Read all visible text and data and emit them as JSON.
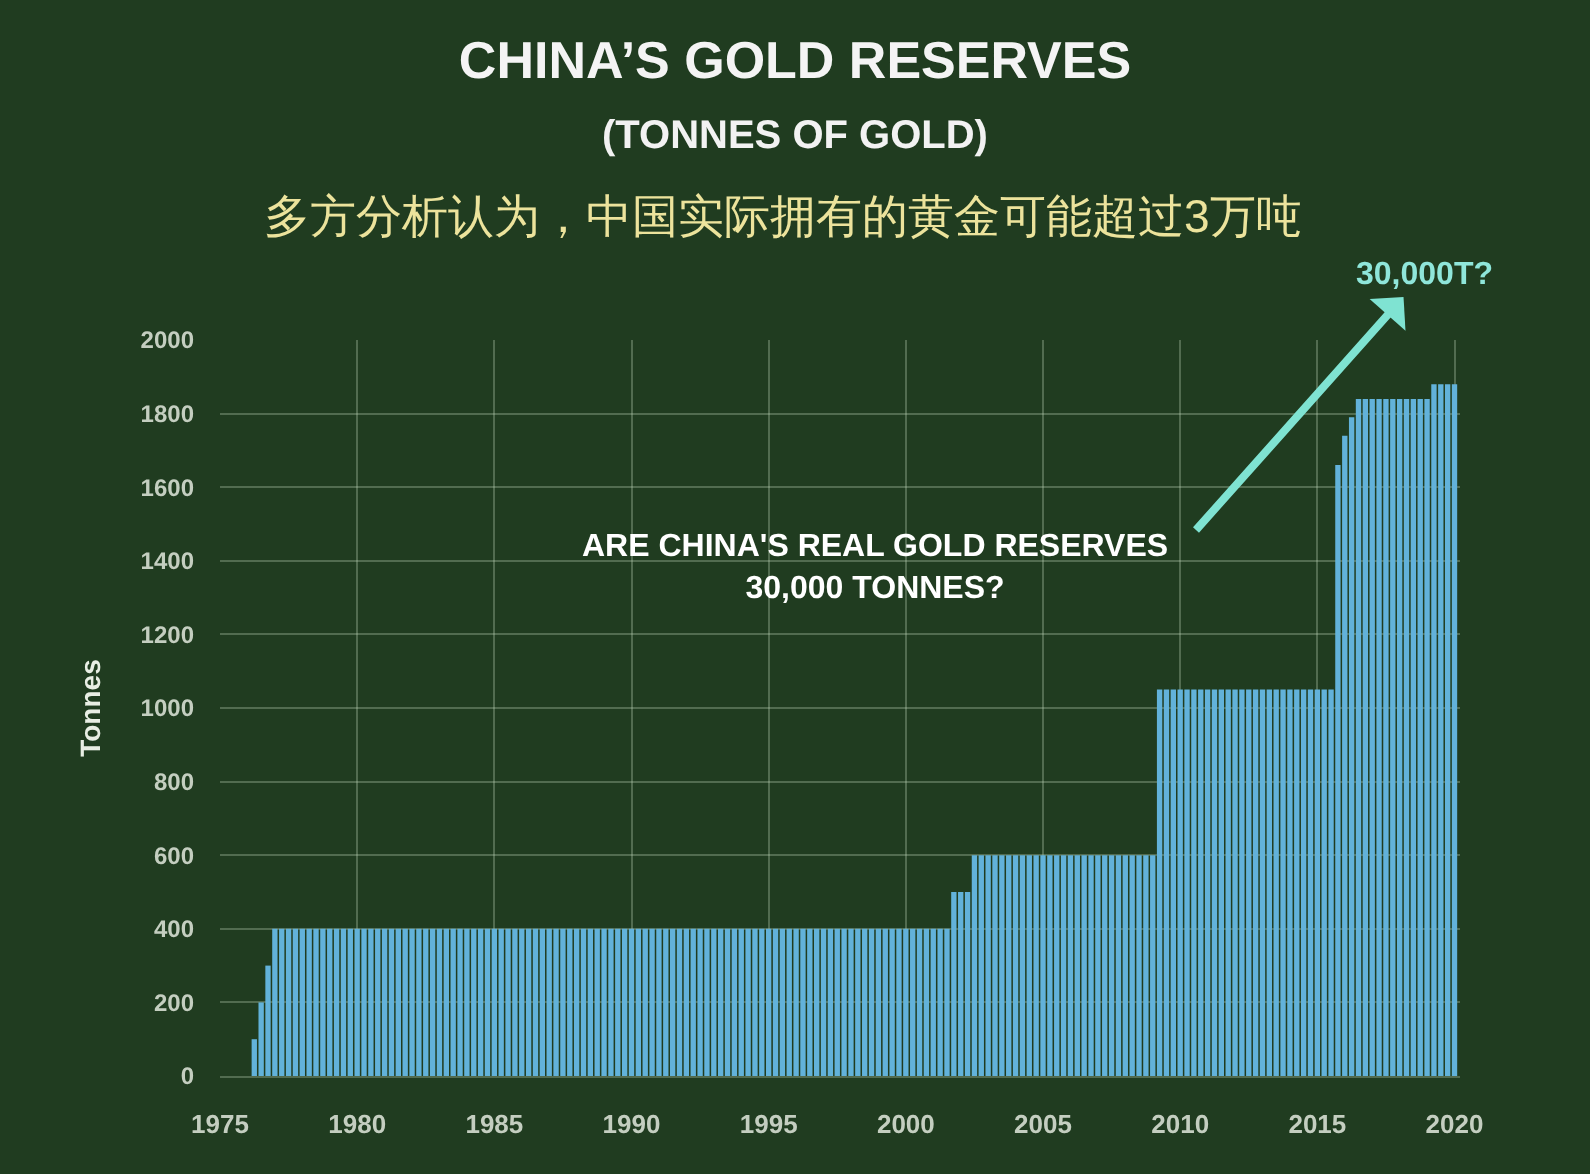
{
  "chart_data": {
    "type": "bar",
    "title": "CHINA’S GOLD RESERVES",
    "subtitle": "(TONNES OF GOLD)",
    "ylabel": "Tonnes",
    "annotations": [
      "多方分析认为，中国实际拥有的黄金可能超过3万吨",
      "ARE CHINA'S REAL GOLD RESERVES\n30,000 TONNES?",
      "30,000T?"
    ],
    "x": [
      1976.25,
      1976.5,
      1976.75,
      1977,
      1977.25,
      1977.5,
      1977.75,
      1978,
      1978.25,
      1978.5,
      1978.75,
      1979,
      1979.25,
      1979.5,
      1979.75,
      1980,
      1980.25,
      1980.5,
      1980.75,
      1981,
      1981.25,
      1981.5,
      1981.75,
      1982,
      1982.25,
      1982.5,
      1982.75,
      1983,
      1983.25,
      1983.5,
      1983.75,
      1984,
      1984.25,
      1984.5,
      1984.75,
      1985,
      1985.25,
      1985.5,
      1985.75,
      1986,
      1986.25,
      1986.5,
      1986.75,
      1987,
      1987.25,
      1987.5,
      1987.75,
      1988,
      1988.25,
      1988.5,
      1988.75,
      1989,
      1989.25,
      1989.5,
      1989.75,
      1990,
      1990.25,
      1990.5,
      1990.75,
      1991,
      1991.25,
      1991.5,
      1991.75,
      1992,
      1992.25,
      1992.5,
      1992.75,
      1993,
      1993.25,
      1993.5,
      1993.75,
      1994,
      1994.25,
      1994.5,
      1994.75,
      1995,
      1995.25,
      1995.5,
      1995.75,
      1996,
      1996.25,
      1996.5,
      1996.75,
      1997,
      1997.25,
      1997.5,
      1997.75,
      1998,
      1998.25,
      1998.5,
      1998.75,
      1999,
      1999.25,
      1999.5,
      1999.75,
      2000,
      2000.25,
      2000.5,
      2000.75,
      2001,
      2001.25,
      2001.5,
      2001.75,
      2002,
      2002.25,
      2002.5,
      2002.75,
      2003,
      2003.25,
      2003.5,
      2003.75,
      2004,
      2004.25,
      2004.5,
      2004.75,
      2005,
      2005.25,
      2005.5,
      2005.75,
      2006,
      2006.25,
      2006.5,
      2006.75,
      2007,
      2007.25,
      2007.5,
      2007.75,
      2008,
      2008.25,
      2008.5,
      2008.75,
      2009,
      2009.25,
      2009.5,
      2009.75,
      2010,
      2010.25,
      2010.5,
      2010.75,
      2011,
      2011.25,
      2011.5,
      2011.75,
      2012,
      2012.25,
      2012.5,
      2012.75,
      2013,
      2013.25,
      2013.5,
      2013.75,
      2014,
      2014.25,
      2014.5,
      2014.75,
      2015,
      2015.25,
      2015.5,
      2015.75,
      2016,
      2016.25,
      2016.5,
      2016.75,
      2017,
      2017.25,
      2017.5,
      2017.75,
      2018,
      2018.25,
      2018.5,
      2018.75,
      2019,
      2019.25,
      2019.5,
      2019.75,
      2020
    ],
    "values": [
      100,
      200,
      300,
      400,
      400,
      400,
      400,
      400,
      400,
      400,
      400,
      400,
      400,
      400,
      400,
      400,
      400,
      400,
      400,
      400,
      400,
      400,
      400,
      400,
      400,
      400,
      400,
      400,
      400,
      400,
      400,
      400,
      400,
      400,
      400,
      400,
      400,
      400,
      400,
      400,
      400,
      400,
      400,
      400,
      400,
      400,
      400,
      400,
      400,
      400,
      400,
      400,
      400,
      400,
      400,
      400,
      400,
      400,
      400,
      400,
      400,
      400,
      400,
      400,
      400,
      400,
      400,
      400,
      400,
      400,
      400,
      400,
      400,
      400,
      400,
      400,
      400,
      400,
      400,
      400,
      400,
      400,
      400,
      400,
      400,
      400,
      400,
      400,
      400,
      400,
      400,
      400,
      400,
      400,
      400,
      400,
      400,
      400,
      400,
      400,
      400,
      400,
      500,
      500,
      500,
      600,
      600,
      600,
      600,
      600,
      600,
      600,
      600,
      600,
      600,
      600,
      600,
      600,
      600,
      600,
      600,
      600,
      600,
      600,
      600,
      600,
      600,
      600,
      600,
      600,
      600,
      600,
      1050,
      1050,
      1050,
      1050,
      1050,
      1050,
      1050,
      1050,
      1050,
      1050,
      1050,
      1050,
      1050,
      1050,
      1050,
      1050,
      1050,
      1050,
      1050,
      1050,
      1050,
      1050,
      1050,
      1050,
      1050,
      1050,
      1660,
      1740,
      1790,
      1840,
      1840,
      1840,
      1840,
      1840,
      1840,
      1840,
      1840,
      1840,
      1840,
      1840,
      1880,
      1880,
      1880,
      1880
    ],
    "color": "#62b2da",
    "xlim": [
      1975,
      2020.2
    ],
    "xticks": [
      1975,
      1980,
      1985,
      1990,
      1995,
      2000,
      2005,
      2010,
      2015,
      2020
    ],
    "ylim": [
      0,
      2000
    ],
    "yticks": [
      0,
      200,
      400,
      600,
      800,
      1000,
      1200,
      1400,
      1600,
      1800,
      2000
    ],
    "grid": true
  }
}
